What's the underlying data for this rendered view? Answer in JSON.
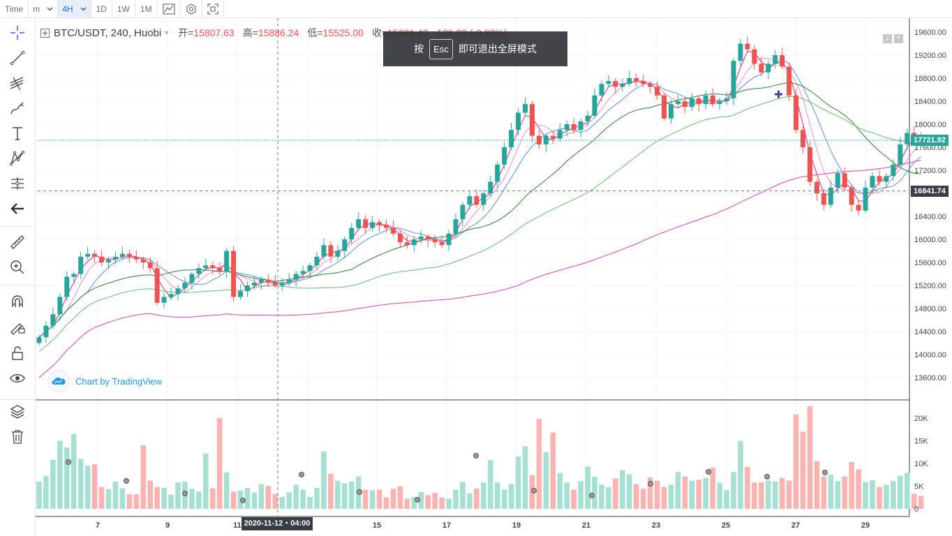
{
  "toolbar": {
    "time_label": "Time",
    "interval_unit": "m",
    "interval_active": "4H",
    "intervals": [
      "1D",
      "1W",
      "1M"
    ]
  },
  "legend": {
    "symbol": "BTC/USDT, 240, Huobi",
    "open_label": "开=",
    "open": "15807.63",
    "high_label": "高=",
    "high": "15886.24",
    "low_label": "低=",
    "low": "15525.00",
    "close_label": "收=",
    "close": "15681.42",
    "change": "-126.20 (-0.80%)"
  },
  "toast": {
    "pre": "按",
    "key": "Esc",
    "post": "即可退出全屏模式"
  },
  "watermark": {
    "text": "Chart by TradingView"
  },
  "price_axis": {
    "labels": [
      "19600.00",
      "19200.00",
      "18800.00",
      "18400.00",
      "18000.00",
      "17600.00",
      "17200.00",
      "16800.00",
      "16400.00",
      "16000.00",
      "15600.00",
      "15200.00",
      "14800.00",
      "14400.00",
      "14000.00",
      "13600.00"
    ],
    "last_price": "17721.92",
    "crosshair_price": "16841.74",
    "last_price_color": "#26a69a",
    "crosshair_color": "#3a3d46"
  },
  "volume_axis": {
    "labels": [
      "20K",
      "15K",
      "10K",
      "5K",
      "0"
    ]
  },
  "time_axis": {
    "labels": [
      "7",
      "9",
      "11",
      "15",
      "17",
      "19",
      "21",
      "23",
      "25",
      "27",
      "29"
    ],
    "crosshair_date": "2020-11-12・04:00"
  },
  "colors": {
    "up": "#26a69a",
    "down": "#ef5350",
    "up_vol": "#a6e0d3",
    "down_vol": "#f9b4b2"
  },
  "chart_data": {
    "type": "candlestick",
    "title": "BTC/USDT, 240, Huobi",
    "ylim": [
      13400,
      19800
    ],
    "volume_ylim": [
      0,
      24000
    ],
    "close_start": 14200,
    "closes": [
      14300,
      14500,
      14700,
      15000,
      15350,
      15400,
      15700,
      15750,
      15700,
      15600,
      15650,
      15700,
      15750,
      15700,
      15650,
      15600,
      15500,
      14900,
      15000,
      15050,
      15150,
      15250,
      15400,
      15500,
      15550,
      15500,
      15450,
      15800,
      15000,
      15100,
      15200,
      15250,
      15300,
      15250,
      15200,
      15250,
      15300,
      15400,
      15450,
      15550,
      15700,
      15900,
      15700,
      15800,
      16000,
      16200,
      16350,
      16200,
      16300,
      16250,
      16200,
      16100,
      15950,
      15900,
      16000,
      16050,
      16000,
      15950,
      15900,
      16100,
      16350,
      16600,
      16750,
      16600,
      16800,
      17000,
      17300,
      17600,
      17900,
      18200,
      18350,
      17800,
      17650,
      17800,
      17750,
      17900,
      18000,
      17900,
      18050,
      18150,
      18500,
      18700,
      18750,
      18650,
      18700,
      18800,
      18750,
      18700,
      18650,
      18500,
      18100,
      18350,
      18400,
      18300,
      18450,
      18350,
      18500,
      18350,
      18400,
      18450,
      19100,
      19400,
      19300,
      19050,
      18900,
      19050,
      19200,
      19000,
      18500,
      17900,
      17600,
      17000,
      16800,
      16600,
      16900,
      17150,
      16900,
      16600,
      16500,
      16900,
      17100,
      17000,
      17100,
      17300,
      17650,
      17850,
      17800,
      17721
    ],
    "volumes": [
      6000,
      7200,
      10800,
      15000,
      13500,
      16500,
      11000,
      9500,
      9800,
      4800,
      4300,
      6000,
      4500,
      3200,
      3200,
      14000,
      6200,
      4800,
      4600,
      3100,
      5800,
      6000,
      4400,
      3800,
      12200,
      4500,
      20000,
      8000,
      3800,
      4000,
      4600,
      3600,
      5400,
      5000,
      3300,
      2600,
      3600,
      5300,
      4200,
      2600,
      4600,
      12600,
      7700,
      6200,
      5600,
      6000,
      7100,
      4200,
      4100,
      4200,
      2500,
      4400,
      5000,
      2200,
      2600,
      3700,
      3000,
      3500,
      2500,
      2200,
      4200,
      5900,
      3400,
      4500,
      5800,
      10700,
      5800,
      4200,
      5500,
      11500,
      13800,
      7400,
      19800,
      12500,
      16800,
      7900,
      5800,
      4200,
      6100,
      9300,
      7100,
      5300,
      4800,
      6700,
      8500,
      7600,
      5400,
      4400,
      6900,
      6200,
      4800,
      5300,
      8100,
      7100,
      6200,
      6400,
      6800,
      9100,
      5700,
      4100,
      8100,
      15000,
      9200,
      5800,
      5800,
      6200,
      6000,
      6800,
      6200,
      20800,
      17000,
      22600,
      10500,
      7100,
      7500,
      6100,
      7100,
      10300,
      8700,
      5900,
      6300,
      4800,
      5300,
      6100,
      7300,
      7900,
      3300,
      2800
    ],
    "overlays": [
      "MA5",
      "MA10",
      "MA20",
      "MA30",
      "MA60",
      "MA120"
    ]
  }
}
